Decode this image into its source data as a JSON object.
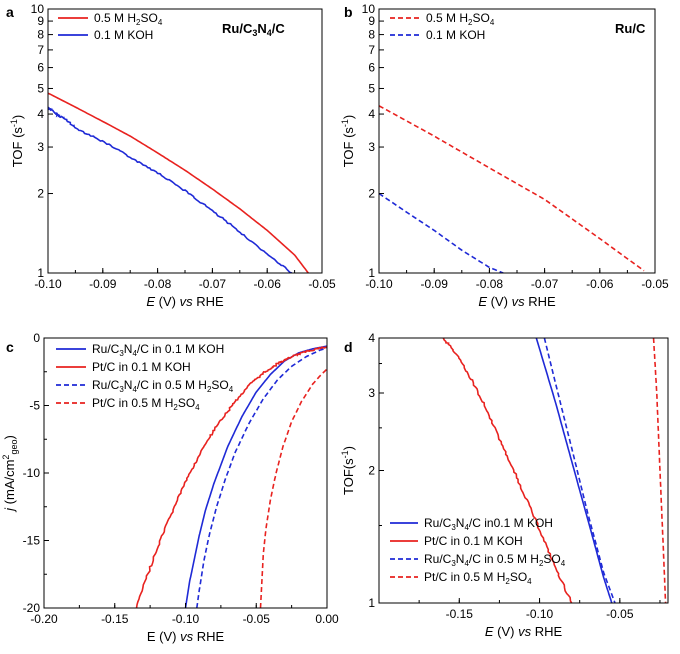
{
  "chart_data": [
    {
      "panel": "a",
      "type": "line",
      "annotation": "Ru/C3N4/C",
      "xlabel": "E (V) vs RHE",
      "ylabel": "TOF (s-1)",
      "xlim": [
        -0.1,
        -0.05
      ],
      "ylim": [
        1,
        10
      ],
      "yscale": "log",
      "xticks": [
        "-0.10",
        "-0.09",
        "-0.08",
        "-0.07",
        "-0.06",
        "-0.05"
      ],
      "yticks": [
        "1",
        "2",
        "3",
        "4",
        "5",
        "6",
        "7",
        "8",
        "9",
        "10"
      ],
      "legend_position": "top-left",
      "series": [
        {
          "name": "0.5 M H2SO4",
          "color": "#e8221f",
          "dash": "solid",
          "noise": 0,
          "x": [
            -0.1,
            -0.095,
            -0.09,
            -0.085,
            -0.08,
            -0.075,
            -0.07,
            -0.065,
            -0.06,
            -0.055,
            -0.0525
          ],
          "y": [
            4.8,
            4.25,
            3.75,
            3.3,
            2.85,
            2.45,
            2.08,
            1.75,
            1.45,
            1.17,
            1.0
          ]
        },
        {
          "name": "0.1 M KOH",
          "color": "#1f2ad6",
          "dash": "solid",
          "noise": 1,
          "x": [
            -0.1,
            -0.0985,
            -0.097,
            -0.095,
            -0.09,
            -0.085,
            -0.08,
            -0.075,
            -0.07,
            -0.065,
            -0.06,
            -0.0555
          ],
          "y": [
            4.25,
            4.0,
            3.85,
            3.55,
            3.15,
            2.75,
            2.4,
            2.05,
            1.72,
            1.43,
            1.18,
            1.0
          ]
        }
      ]
    },
    {
      "panel": "b",
      "type": "line",
      "annotation": "Ru/C",
      "xlabel": "E (V) vs RHE",
      "ylabel": "TOF (s-1)",
      "xlim": [
        -0.1,
        -0.05
      ],
      "ylim": [
        1,
        10
      ],
      "yscale": "log",
      "xticks": [
        "-0.10",
        "-0.09",
        "-0.08",
        "-0.07",
        "-0.06",
        "-0.05"
      ],
      "yticks": [
        "1",
        "2",
        "3",
        "4",
        "5",
        "6",
        "7",
        "8",
        "9",
        "10"
      ],
      "legend_position": "top-left",
      "series": [
        {
          "name": "0.5 M H2SO4",
          "color": "#e8221f",
          "dash": "dashed",
          "noise": 0,
          "x": [
            -0.1,
            -0.09,
            -0.08,
            -0.07,
            -0.06,
            -0.052
          ],
          "y": [
            4.3,
            3.3,
            2.5,
            1.9,
            1.35,
            1.02
          ]
        },
        {
          "name": "0.1 M KOH",
          "color": "#1f2ad6",
          "dash": "dashed",
          "noise": 0,
          "x": [
            -0.1,
            -0.095,
            -0.09,
            -0.085,
            -0.08,
            -0.0775
          ],
          "y": [
            2.0,
            1.7,
            1.45,
            1.22,
            1.05,
            1.0
          ]
        }
      ]
    },
    {
      "panel": "c",
      "type": "line",
      "xlabel": "E (V) vs RHE",
      "ylabel": "j (mA/cm2geo)",
      "xlim": [
        -0.2,
        0.0
      ],
      "ylim": [
        -20,
        0
      ],
      "yscale": "linear",
      "xticks": [
        "-0.20",
        "-0.15",
        "-0.10",
        "-0.05",
        "0.00"
      ],
      "yticks": [
        "-20",
        "-15",
        "-10",
        "-5",
        "0"
      ],
      "legend_position": "top-right",
      "series": [
        {
          "name": "Ru/C3N4/C in 0.1 M KOH",
          "color": "#1f2ad6",
          "dash": "solid",
          "noise": 0,
          "x": [
            -0.1,
            -0.097,
            -0.093,
            -0.09,
            -0.086,
            -0.08,
            -0.07,
            -0.06,
            -0.05,
            -0.04,
            -0.03,
            -0.02,
            -0.01,
            0.0
          ],
          "y": [
            -20.0,
            -18.0,
            -16.0,
            -14.5,
            -12.8,
            -10.8,
            -8.0,
            -5.8,
            -4.0,
            -2.7,
            -1.7,
            -1.1,
            -0.8,
            -0.6
          ]
        },
        {
          "name": "Pt/C in 0.1 M KOH",
          "color": "#e8221f",
          "dash": "solid",
          "noise": 1,
          "x": [
            -0.135,
            -0.125,
            -0.115,
            -0.105,
            -0.095,
            -0.085,
            -0.075,
            -0.065,
            -0.055,
            -0.045,
            -0.035,
            -0.025,
            -0.015,
            -0.005,
            0.0
          ],
          "y": [
            -20.0,
            -17.0,
            -14.3,
            -11.8,
            -9.6,
            -7.7,
            -6.1,
            -4.7,
            -3.5,
            -2.6,
            -1.9,
            -1.4,
            -1.0,
            -0.75,
            -0.7
          ]
        },
        {
          "name": "Ru/C3N4/C in 0.5 M H2SO4",
          "color": "#1f2ad6",
          "dash": "dashed",
          "noise": 0,
          "x": [
            -0.092,
            -0.09,
            -0.087,
            -0.083,
            -0.078,
            -0.072,
            -0.065,
            -0.055,
            -0.045,
            -0.035,
            -0.025,
            -0.015,
            -0.005,
            0.0
          ],
          "y": [
            -20.0,
            -18.5,
            -16.5,
            -14.5,
            -12.5,
            -10.5,
            -8.5,
            -6.3,
            -4.5,
            -3.1,
            -2.1,
            -1.4,
            -0.9,
            -0.75
          ]
        },
        {
          "name": "Pt/C in 0.5 M H2SO4",
          "color": "#e8221f",
          "dash": "dashed",
          "noise": 0,
          "x": [
            -0.047,
            -0.046,
            -0.045,
            -0.043,
            -0.04,
            -0.036,
            -0.031,
            -0.025,
            -0.018,
            -0.01,
            -0.004,
            0.0
          ],
          "y": [
            -20.0,
            -18.0,
            -16.0,
            -14.0,
            -12.0,
            -10.0,
            -8.0,
            -6.2,
            -4.7,
            -3.4,
            -2.7,
            -2.3
          ]
        }
      ]
    },
    {
      "panel": "d",
      "type": "line",
      "xlabel": "E (V) vs RHE",
      "ylabel": "TOF(s-1)",
      "xlim": [
        -0.2,
        -0.02
      ],
      "ylim": [
        1,
        4
      ],
      "yscale": "log",
      "xticks": [
        "-0.15",
        "-0.10",
        "-0.05"
      ],
      "yticks": [
        "1",
        "2",
        "3",
        "4"
      ],
      "legend_position": "bottom-left",
      "series": [
        {
          "name": "Ru/C3N4/C in0.1 M KOH",
          "color": "#1f2ad6",
          "dash": "solid",
          "noise": 0,
          "x": [
            -0.102,
            -0.09,
            -0.08,
            -0.07,
            -0.06,
            -0.055
          ],
          "y": [
            4.0,
            2.85,
            2.1,
            1.55,
            1.14,
            1.0
          ]
        },
        {
          "name": "Pt/C in 0.1 M KOH",
          "color": "#e8221f",
          "dash": "solid",
          "noise": 1,
          "x": [
            -0.16,
            -0.15,
            -0.14,
            -0.13,
            -0.12,
            -0.11,
            -0.1,
            -0.09,
            -0.08
          ],
          "y": [
            4.0,
            3.6,
            3.1,
            2.6,
            2.15,
            1.78,
            1.47,
            1.2,
            1.0
          ]
        },
        {
          "name": "Ru/C3N4/C in 0.5 M H2SO4",
          "color": "#1f2ad6",
          "dash": "dashed",
          "noise": 0,
          "x": [
            -0.097,
            -0.09,
            -0.08,
            -0.07,
            -0.06,
            -0.053
          ],
          "y": [
            4.0,
            3.15,
            2.25,
            1.6,
            1.17,
            1.0
          ]
        },
        {
          "name": "Pt/C in 0.5 M H2SO4",
          "color": "#e8221f",
          "dash": "dashed",
          "noise": 0,
          "x": [
            -0.029,
            -0.027,
            -0.025,
            -0.023,
            -0.0215
          ],
          "y": [
            4.0,
            3.0,
            2.0,
            1.35,
            1.0
          ]
        }
      ]
    }
  ],
  "legends": {
    "a": [
      {
        "text_main": "0.5 M H",
        "sub1": "2",
        "text_mid": "SO",
        "sub2": "4",
        "text_end": ""
      },
      {
        "text_main": "0.1 M KOH",
        "sub1": "",
        "text_mid": "",
        "sub2": "",
        "text_end": ""
      }
    ],
    "b": [
      {
        "text_main": "0.5 M H",
        "sub1": "2",
        "text_mid": "SO",
        "sub2": "4",
        "text_end": ""
      },
      {
        "text_main": "0.1 M KOH",
        "sub1": "",
        "text_mid": "",
        "sub2": "",
        "text_end": ""
      }
    ],
    "c": [
      {
        "text_main": "Ru/C",
        "sub1": "3",
        "text_mid": "N",
        "sub2": "4",
        "text_end": "/C in 0.1 M KOH"
      },
      {
        "text_main": "Pt/C in 0.1 M KOH",
        "sub1": "",
        "text_mid": "",
        "sub2": "",
        "text_end": ""
      },
      {
        "text_main": "Ru/C",
        "sub1": "3",
        "text_mid": "N",
        "sub2": "4",
        "text_end": "/C in 0.5 M H",
        "sub3": "2",
        "text_end2": "SO",
        "sub4": "4"
      },
      {
        "text_main": "Pt/C in 0.5 M H",
        "sub1": "2",
        "text_mid": "SO",
        "sub2": "4",
        "text_end": ""
      }
    ],
    "d": [
      {
        "text_main": "Ru/C",
        "sub1": "3",
        "text_mid": "N",
        "sub2": "4",
        "text_end": "/C in0.1 M KOH"
      },
      {
        "text_main": "Pt/C in 0.1 M KOH",
        "sub1": "",
        "text_mid": "",
        "sub2": "",
        "text_end": ""
      },
      {
        "text_main": "Ru/C",
        "sub1": "3",
        "text_mid": "N",
        "sub2": "4",
        "text_end": "/C in 0.5 M H",
        "sub3": "2",
        "text_end2": "SO",
        "sub4": "4"
      },
      {
        "text_main": "Pt/C in 0.5 M H",
        "sub1": "2",
        "text_mid": "SO",
        "sub2": "4",
        "text_end": ""
      }
    ]
  },
  "annotations": {
    "a": {
      "main": "Ru/C",
      "sub1": "3",
      "mid": "N",
      "sub2": "4",
      "end": "/C"
    },
    "b": {
      "main": "Ru/C"
    }
  },
  "axis_labels": {
    "tof": {
      "main": "TOF (s",
      "sup": "-1",
      "end": ")"
    },
    "tof_d": {
      "main": "TOF(s",
      "sup": "-1",
      "end": ")"
    },
    "e_main": "E",
    "e_unit": " (V) ",
    "e_vs": "vs",
    "e_rhe": " RHE",
    "c_x_main": "E (V) ",
    "j_main": "j",
    "j_mid": " (mA/cm",
    "j_sup": "2",
    "j_sub": "geo",
    "j_end": ")"
  },
  "panel_letters": [
    "a",
    "b",
    "c",
    "d"
  ]
}
